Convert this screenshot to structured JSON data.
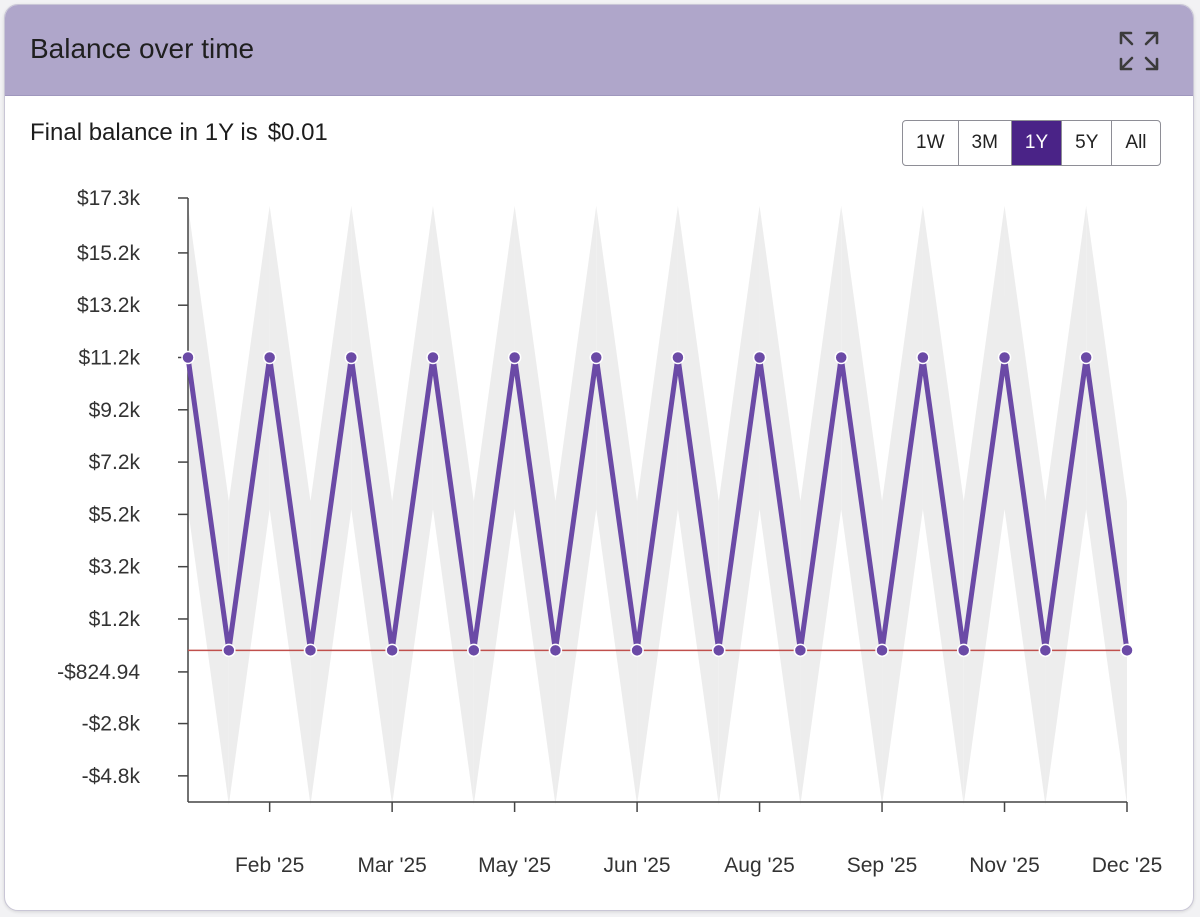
{
  "card": {
    "title": "Balance over time",
    "expand_icon": "expand-arrows-icon"
  },
  "summary": {
    "label": "Final balance in 1Y is",
    "value": "$0.01"
  },
  "range_buttons": [
    {
      "label": "1W",
      "active": false
    },
    {
      "label": "3M",
      "active": false
    },
    {
      "label": "1Y",
      "active": true
    },
    {
      "label": "5Y",
      "active": false
    },
    {
      "label": "All",
      "active": false
    }
  ],
  "colors": {
    "header": "#afa6ca",
    "line": "#6b4aa6",
    "band": "#ededed",
    "zero_line": "#c0504d",
    "active_button": "#4a2387"
  },
  "chart_data": {
    "type": "line",
    "title": "",
    "xlabel": "",
    "ylabel": "",
    "ylim": [
      -5800,
      17300
    ],
    "y_ticks": [
      {
        "value": 17300,
        "label": "$17.3k"
      },
      {
        "value": 15200,
        "label": "$15.2k"
      },
      {
        "value": 13200,
        "label": "$13.2k"
      },
      {
        "value": 11200,
        "label": "$11.2k"
      },
      {
        "value": 9200,
        "label": "$9.2k"
      },
      {
        "value": 7200,
        "label": "$7.2k"
      },
      {
        "value": 5200,
        "label": "$5.2k"
      },
      {
        "value": 3200,
        "label": "$3.2k"
      },
      {
        "value": 1200,
        "label": "$1.2k"
      },
      {
        "value": -824.94,
        "label": "-$824.94"
      },
      {
        "value": -2800,
        "label": "-$2.8k"
      },
      {
        "value": -4800,
        "label": "-$4.8k"
      }
    ],
    "x_ticks": [
      "Feb '25",
      "Mar '25",
      "May '25",
      "Jun '25",
      "Aug '25",
      "Sep '25",
      "Nov '25",
      "Dec '25"
    ],
    "x_tick_index": [
      2,
      5,
      8,
      11,
      14,
      17,
      20,
      23
    ],
    "zero_line": 0,
    "band": {
      "upper_high": 17000,
      "upper_low": 5700,
      "lower_high": 5400,
      "lower_low": -5900
    },
    "series": [
      {
        "values": [
          11200,
          0,
          11200,
          0,
          11200,
          0,
          11200,
          0,
          11200,
          0,
          11200,
          0,
          11200,
          0,
          11200,
          0,
          11200,
          0,
          11200,
          0,
          11200,
          0,
          11200,
          0.01
        ]
      }
    ]
  }
}
